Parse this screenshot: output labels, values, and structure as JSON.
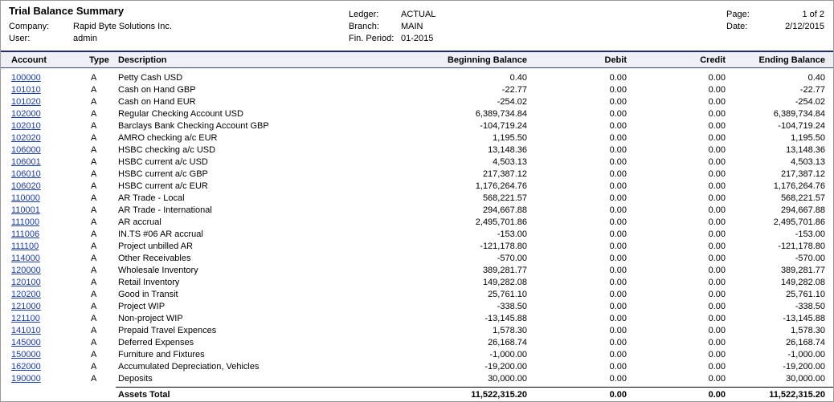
{
  "report": {
    "title": "Trial Balance Summary",
    "company_label": "Company:",
    "company": "Rapid Byte Solutions Inc.",
    "user_label": "User:",
    "user": "admin",
    "ledger_label": "Ledger:",
    "ledger": "ACTUAL",
    "branch_label": "Branch:",
    "branch": "MAIN",
    "period_label": "Fin. Period:",
    "period": "01-2015",
    "page_label": "Page:",
    "page": "1 of 2",
    "date_label": "Date:",
    "date": "2/12/2015"
  },
  "columns": {
    "account": "Account",
    "type": "Type",
    "description": "Description",
    "beginning": "Beginning Balance",
    "debit": "Debit",
    "credit": "Credit",
    "ending": "Ending Balance"
  },
  "rows": [
    {
      "account": "100000",
      "type": "A",
      "description": "Petty Cash USD",
      "beginning": "0.40",
      "debit": "0.00",
      "credit": "0.00",
      "ending": "0.40"
    },
    {
      "account": "101010",
      "type": "A",
      "description": "Cash on Hand GBP",
      "beginning": "-22.77",
      "debit": "0.00",
      "credit": "0.00",
      "ending": "-22.77"
    },
    {
      "account": "101020",
      "type": "A",
      "description": "Cash on Hand EUR",
      "beginning": "-254.02",
      "debit": "0.00",
      "credit": "0.00",
      "ending": "-254.02"
    },
    {
      "account": "102000",
      "type": "A",
      "description": "Regular Checking Account USD",
      "beginning": "6,389,734.84",
      "debit": "0.00",
      "credit": "0.00",
      "ending": "6,389,734.84"
    },
    {
      "account": "102010",
      "type": "A",
      "description": "Barclays Bank Checking Account GBP",
      "beginning": "-104,719.24",
      "debit": "0.00",
      "credit": "0.00",
      "ending": "-104,719.24"
    },
    {
      "account": "102020",
      "type": "A",
      "description": "AMRO checking a/c EUR",
      "beginning": "1,195.50",
      "debit": "0.00",
      "credit": "0.00",
      "ending": "1,195.50"
    },
    {
      "account": "106000",
      "type": "A",
      "description": "HSBC checking a/c USD",
      "beginning": "13,148.36",
      "debit": "0.00",
      "credit": "0.00",
      "ending": "13,148.36"
    },
    {
      "account": "106001",
      "type": "A",
      "description": "HSBC current a/c USD",
      "beginning": "4,503.13",
      "debit": "0.00",
      "credit": "0.00",
      "ending": "4,503.13"
    },
    {
      "account": "106010",
      "type": "A",
      "description": "HSBC current a/c GBP",
      "beginning": "217,387.12",
      "debit": "0.00",
      "credit": "0.00",
      "ending": "217,387.12"
    },
    {
      "account": "106020",
      "type": "A",
      "description": "HSBC current a/c EUR",
      "beginning": "1,176,264.76",
      "debit": "0.00",
      "credit": "0.00",
      "ending": "1,176,264.76"
    },
    {
      "account": "110000",
      "type": "A",
      "description": "AR Trade - Local",
      "beginning": "568,221.57",
      "debit": "0.00",
      "credit": "0.00",
      "ending": "568,221.57"
    },
    {
      "account": "110001",
      "type": "A",
      "description": "AR Trade - International",
      "beginning": "294,667.88",
      "debit": "0.00",
      "credit": "0.00",
      "ending": "294,667.88"
    },
    {
      "account": "111000",
      "type": "A",
      "description": "AR accrual",
      "beginning": "2,495,701.86",
      "debit": "0.00",
      "credit": "0.00",
      "ending": "2,495,701.86"
    },
    {
      "account": "111006",
      "type": "A",
      "description": "IN.TS #06 AR accrual",
      "beginning": "-153.00",
      "debit": "0.00",
      "credit": "0.00",
      "ending": "-153.00"
    },
    {
      "account": "111100",
      "type": "A",
      "description": "Project unbilled AR",
      "beginning": "-121,178.80",
      "debit": "0.00",
      "credit": "0.00",
      "ending": "-121,178.80"
    },
    {
      "account": "114000",
      "type": "A",
      "description": "Other Receivables",
      "beginning": "-570.00",
      "debit": "0.00",
      "credit": "0.00",
      "ending": "-570.00"
    },
    {
      "account": "120000",
      "type": "A",
      "description": "Wholesale Inventory",
      "beginning": "389,281.77",
      "debit": "0.00",
      "credit": "0.00",
      "ending": "389,281.77"
    },
    {
      "account": "120100",
      "type": "A",
      "description": "Retail Inventory",
      "beginning": "149,282.08",
      "debit": "0.00",
      "credit": "0.00",
      "ending": "149,282.08"
    },
    {
      "account": "120200",
      "type": "A",
      "description": "Good in Transit",
      "beginning": "25,761.10",
      "debit": "0.00",
      "credit": "0.00",
      "ending": "25,761.10"
    },
    {
      "account": "121000",
      "type": "A",
      "description": "Project WIP",
      "beginning": "-338.50",
      "debit": "0.00",
      "credit": "0.00",
      "ending": "-338.50"
    },
    {
      "account": "121100",
      "type": "A",
      "description": "Non-project WIP",
      "beginning": "-13,145.88",
      "debit": "0.00",
      "credit": "0.00",
      "ending": "-13,145.88"
    },
    {
      "account": "141010",
      "type": "A",
      "description": "Prepaid Travel Expences",
      "beginning": "1,578.30",
      "debit": "0.00",
      "credit": "0.00",
      "ending": "1,578.30"
    },
    {
      "account": "145000",
      "type": "A",
      "description": "Deferred Expenses",
      "beginning": "26,168.74",
      "debit": "0.00",
      "credit": "0.00",
      "ending": "26,168.74"
    },
    {
      "account": "150000",
      "type": "A",
      "description": "Furniture and Fixtures",
      "beginning": "-1,000.00",
      "debit": "0.00",
      "credit": "0.00",
      "ending": "-1,000.00"
    },
    {
      "account": "162000",
      "type": "A",
      "description": "Accumulated Depreciation, Vehicles",
      "beginning": "-19,200.00",
      "debit": "0.00",
      "credit": "0.00",
      "ending": "-19,200.00"
    },
    {
      "account": "190000",
      "type": "A",
      "description": "Deposits",
      "beginning": "30,000.00",
      "debit": "0.00",
      "credit": "0.00",
      "ending": "30,000.00"
    }
  ],
  "total": {
    "label": "Assets Total",
    "beginning": "11,522,315.20",
    "debit": "0.00",
    "credit": "0.00",
    "ending": "11,522,315.20"
  },
  "colors": {
    "link": "#1a3bb5",
    "header_bg": "#eef0f8",
    "header_rule": "#1f2d6e"
  }
}
